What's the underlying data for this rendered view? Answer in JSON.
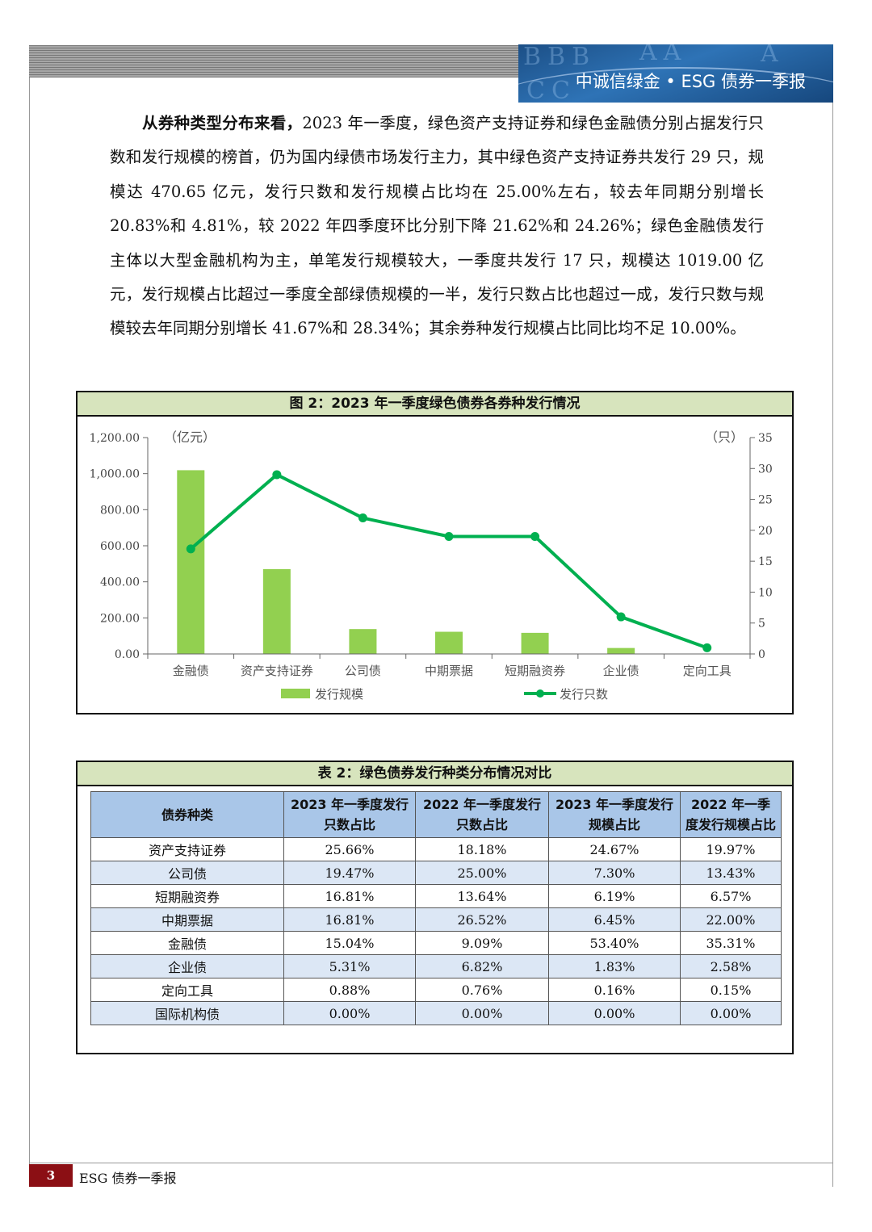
{
  "header": {
    "title": "中诚信绿金 • ESG 债券一季报",
    "watermark": [
      "BBB",
      "AA",
      "CC",
      "A"
    ]
  },
  "paragraph": {
    "lead": "从券种类型分布来看，",
    "body": "2023 年一季度，绿色资产支持证券和绿色金融债分别占据发行只数和发行规模的榜首，仍为国内绿债市场发行主力，其中绿色资产支持证券共发行 29 只，规模达 470.65 亿元，发行只数和发行规模占比均在 25.00%左右，较去年同期分别增长 20.83%和 4.81%，较 2022 年四季度环比分别下降 21.62%和 24.26%；绿色金融债发行主体以大型金融机构为主，单笔发行规模较大，一季度共发行 17 只，规模达 1019.00 亿元，发行规模占比超过一季度全部绿债规模的一半，发行只数占比也超过一成，发行只数与规模较去年同期分别增长 41.67%和 28.34%；其余券种发行规模占比同比均不足 10.00%。"
  },
  "figure": {
    "title": "图 2：2023 年一季度绿色债券各券种发行情况"
  },
  "chart_data": {
    "type": "bar+line",
    "categories": [
      "金融债",
      "资产支持证券",
      "公司债",
      "中期票据",
      "短期融资券",
      "企业债",
      "定向工具"
    ],
    "series": [
      {
        "name": "发行规模",
        "type": "bar",
        "axis": "left",
        "color": "#92d050",
        "values": [
          1019.0,
          470.65,
          138,
          123,
          117,
          33,
          2
        ]
      },
      {
        "name": "发行只数",
        "type": "line",
        "axis": "right",
        "color": "#00b050",
        "values": [
          17,
          29,
          22,
          19,
          19,
          6,
          1
        ]
      }
    ],
    "y_left": {
      "label": "（亿元）",
      "min": 0,
      "max": 1200,
      "ticks": [
        "0.00",
        "200.00",
        "400.00",
        "600.00",
        "800.00",
        "1,000.00",
        "1,200.00"
      ]
    },
    "y_right": {
      "label": "（只）",
      "min": 0,
      "max": 35,
      "ticks": [
        "0",
        "5",
        "10",
        "15",
        "20",
        "25",
        "30",
        "35"
      ]
    },
    "legend": "bottom"
  },
  "table": {
    "title": "表 2：绿色债券发行种类分布情况对比",
    "headers": [
      "债券种类",
      "2023 年一季度发行只数占比",
      "2022 年一季度发行只数占比",
      "2023 年一季度发行规模占比",
      "2022 年一季度发行规模占比"
    ],
    "rows": [
      [
        "资产支持证券",
        "25.66%",
        "18.18%",
        "24.67%",
        "19.97%"
      ],
      [
        "公司债",
        "19.47%",
        "25.00%",
        "7.30%",
        "13.43%"
      ],
      [
        "短期融资券",
        "16.81%",
        "13.64%",
        "6.19%",
        "6.57%"
      ],
      [
        "中期票据",
        "16.81%",
        "26.52%",
        "6.45%",
        "22.00%"
      ],
      [
        "金融债",
        "15.04%",
        "9.09%",
        "53.40%",
        "35.31%"
      ],
      [
        "企业债",
        "5.31%",
        "6.82%",
        "1.83%",
        "2.58%"
      ],
      [
        "定向工具",
        "0.88%",
        "0.76%",
        "0.16%",
        "0.15%"
      ],
      [
        "国际机构债",
        "0.00%",
        "0.00%",
        "0.00%",
        "0.00%"
      ]
    ]
  },
  "footer": {
    "page_number": "3",
    "label": "ESG 债券一季报"
  }
}
